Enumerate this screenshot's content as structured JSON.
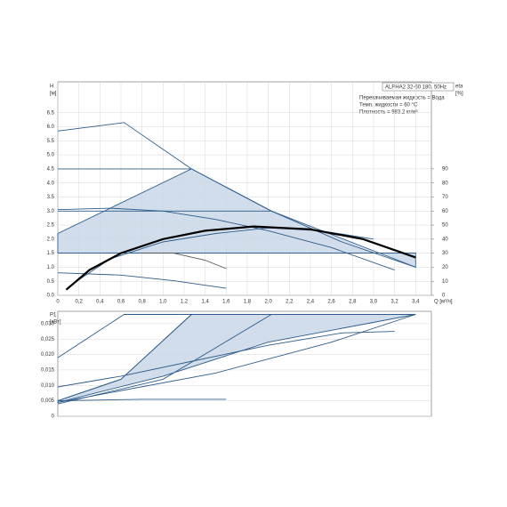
{
  "chart_data": [
    {
      "type": "line",
      "y_label": "H",
      "y_unit": "[м]",
      "y2_label": "eta",
      "y2_unit": "[%]",
      "x_label": "Q [м³/ч]",
      "annotations": [
        "ALPHA2 32-60 180, 50Hz",
        "Перекачиваемая жидкость = Вода",
        "Темп. жидкости = 60 °C",
        "Плотность = 983.2 кг/м³"
      ],
      "xlim": [
        0,
        3.55
      ],
      "ylim": [
        0,
        7.6
      ],
      "y2lim": [
        0,
        152
      ],
      "grid": true,
      "xticks": [
        0,
        {
          "value": 0.2,
          "label": "0,2"
        },
        {
          "value": 0.4,
          "label": "0,4"
        },
        {
          "value": 0.6,
          "label": "0,6"
        },
        {
          "value": 0.8,
          "label": "0,8"
        },
        {
          "value": 1.0,
          "label": "1,0"
        },
        {
          "value": 1.2,
          "label": "1,2"
        },
        {
          "value": 1.4,
          "label": "1,4"
        },
        {
          "value": 1.6,
          "label": "1,6"
        },
        {
          "value": 1.8,
          "label": "1,8"
        },
        {
          "value": 2.0,
          "label": "2,0"
        },
        {
          "value": 2.2,
          "label": "2,2"
        },
        {
          "value": 2.4,
          "label": "2,4"
        },
        {
          "value": 2.6,
          "label": "2,6"
        },
        {
          "value": 2.8,
          "label": "2,8"
        },
        {
          "value": 3.0,
          "label": "3,0"
        },
        {
          "value": 3.2,
          "label": "3,2"
        },
        {
          "value": 3.4,
          "label": "3,4"
        }
      ],
      "yticks": [
        {
          "value": 0,
          "label": "0.0"
        },
        0.5,
        {
          "value": 1,
          "label": "1.0"
        },
        1.5,
        {
          "value": 2,
          "label": "2.0"
        },
        2.5,
        {
          "value": 3,
          "label": "3.0"
        },
        3.5,
        {
          "value": 4,
          "label": "4.0"
        },
        4.5,
        {
          "value": 5,
          "label": "5.0"
        },
        5.5,
        {
          "value": 6,
          "label": "6.0"
        },
        6.5
      ],
      "y2ticks": [
        0,
        10,
        20,
        30,
        40,
        50,
        60,
        70,
        80,
        90
      ],
      "series": [
        {
          "fill": "#c9d7e6",
          "color": "#2e5c8a",
          "x": [
            0,
            1.27,
            2.03,
            3.4,
            3.4,
            0
          ],
          "values": [
            2.2,
            4.5,
            3.0,
            1.0,
            1.5,
            1.5
          ]
        },
        {
          "color": "#2e5c8a",
          "x": [
            0,
            0.63,
            1.27,
            2.03,
            2.7,
            3.4
          ],
          "values": [
            5.85,
            6.15,
            4.5,
            3.0,
            1.9,
            1.0
          ]
        },
        {
          "color": "#2e5c8a",
          "x": [
            0,
            1.27
          ],
          "values": [
            4.5,
            4.5
          ]
        },
        {
          "color": "#2e5c8a",
          "x": [
            0,
            2.03
          ],
          "values": [
            3.0,
            3.0
          ]
        },
        {
          "color": "#2e5c8a",
          "x": [
            0,
            3.4
          ],
          "values": [
            1.5,
            1.5
          ]
        },
        {
          "color": "#2e5c8a",
          "x": [
            0,
            0.5,
            1.0,
            1.5,
            2.0,
            2.6,
            3.2
          ],
          "values": [
            3.05,
            3.1,
            3.0,
            2.7,
            2.3,
            1.7,
            0.9
          ]
        },
        {
          "color": "#2e5c8a",
          "x": [
            0.1,
            0.5,
            1.0,
            1.5,
            2.0,
            2.5,
            3.0
          ],
          "values": [
            0.3,
            1.3,
            1.9,
            2.2,
            2.4,
            2.3,
            2.0
          ]
        },
        {
          "color": "#555555",
          "x": [
            0.8,
            1.1,
            1.4,
            1.6
          ],
          "values": [
            1.5,
            1.5,
            1.25,
            0.95
          ]
        },
        {
          "color": "#2e5c8a",
          "x": [
            0,
            0.6,
            1.1,
            1.6
          ],
          "values": [
            0.8,
            0.72,
            0.52,
            0.25
          ]
        },
        {
          "color": "#000000",
          "width": 2.2,
          "axis": "y2",
          "x": [
            0.08,
            0.3,
            0.6,
            1.0,
            1.4,
            1.86,
            2.4,
            2.9,
            3.4
          ],
          "values": [
            4,
            18,
            30,
            40,
            46,
            49,
            47,
            40,
            27
          ]
        }
      ]
    },
    {
      "type": "line",
      "y_label": "P1",
      "y_unit": "[кВт]",
      "xlim": [
        0,
        3.55
      ],
      "ylim": [
        0,
        0.034
      ],
      "grid": true,
      "yticks": [
        0,
        {
          "value": 0.005,
          "label": "0,005"
        },
        {
          "value": 0.01,
          "label": "0,010"
        },
        {
          "value": 0.015,
          "label": "0,015"
        },
        {
          "value": 0.02,
          "label": "0,020"
        },
        {
          "value": 0.025,
          "label": "0,025"
        },
        {
          "value": 0.03,
          "label": "0,030"
        }
      ],
      "series": [
        {
          "fill": "#c9d7e6",
          "color": "#2e5c8a",
          "x": [
            0,
            0.6,
            1.27,
            3.4,
            2.0,
            1.0,
            0
          ],
          "values": [
            0.005,
            0.012,
            0.033,
            0.033,
            0.024,
            0.013,
            0.0045
          ]
        },
        {
          "color": "#2e5c8a",
          "x": [
            0,
            0.63,
            3.4
          ],
          "values": [
            0.019,
            0.033,
            0.033
          ]
        },
        {
          "color": "#2e5c8a",
          "x": [
            0,
            0.6,
            1.27
          ],
          "values": [
            0.005,
            0.012,
            0.033
          ]
        },
        {
          "color": "#2e5c8a",
          "x": [
            0,
            1.0,
            2.03
          ],
          "values": [
            0.004,
            0.012,
            0.033
          ]
        },
        {
          "color": "#2e5c8a",
          "x": [
            0,
            1.5,
            2.6,
            3.4
          ],
          "values": [
            0.0045,
            0.014,
            0.024,
            0.033
          ]
        },
        {
          "color": "#2e5c8a",
          "x": [
            0,
            0.6,
            1.3,
            2.0,
            2.7,
            3.2
          ],
          "values": [
            0.0095,
            0.013,
            0.018,
            0.023,
            0.027,
            0.0275
          ]
        },
        {
          "color": "#2e5c8a",
          "x": [
            0,
            0.8,
            1.6
          ],
          "values": [
            0.005,
            0.0055,
            0.0055
          ]
        }
      ]
    }
  ]
}
